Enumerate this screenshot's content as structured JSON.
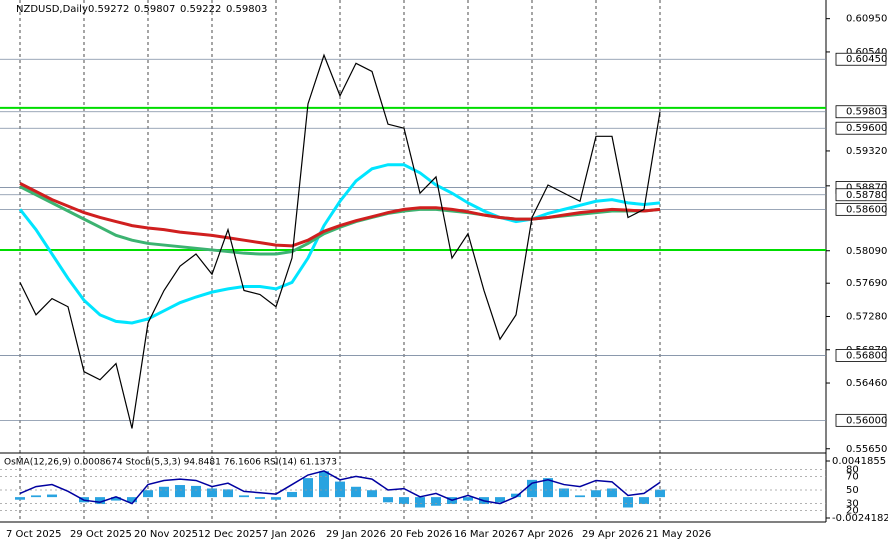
{
  "chart_data": [
    {
      "type": "line",
      "title": "NZDUSD,Daily",
      "ohlc": [
        0.59272,
        0.59807,
        0.59222,
        0.59803
      ],
      "categories": [
        "7 Oct 2025",
        null,
        null,
        null,
        "29 Oct 2025",
        null,
        null,
        null,
        "20 Nov 2025",
        null,
        null,
        null,
        "12 Dec 2025",
        null,
        null,
        null,
        "7 Jan 2026",
        null,
        null,
        null,
        "29 Jan 2026",
        null,
        null,
        null,
        "20 Feb 2026",
        null,
        null,
        null,
        "16 Mar 2026",
        null,
        null,
        null,
        "7 Apr 2026",
        null,
        null,
        null,
        "29 Apr 2026",
        null,
        null,
        null,
        "21 May 2026"
      ],
      "series": [
        {
          "color": "#000000",
          "values": [
            0.577,
            0.573,
            0.575,
            0.574,
            0.566,
            0.565,
            0.567,
            0.559,
            0.572,
            0.576,
            0.579,
            0.5805,
            0.578,
            0.5835,
            0.576,
            0.5755,
            0.574,
            0.58,
            0.599,
            0.605,
            0.6,
            0.604,
            0.603,
            0.5965,
            0.596,
            0.588,
            0.59,
            0.58,
            0.583,
            0.576,
            0.57,
            0.573,
            0.585,
            0.589,
            0.588,
            0.587,
            0.595,
            0.595,
            0.585,
            0.586,
            0.59803
          ]
        },
        {
          "color": "#00e5ff",
          "values": [
            0.586,
            0.5835,
            0.5805,
            0.5775,
            0.5748,
            0.573,
            0.5722,
            0.572,
            0.5725,
            0.5735,
            0.5745,
            0.5752,
            0.5758,
            0.5762,
            0.5765,
            0.5765,
            0.5762,
            0.577,
            0.58,
            0.584,
            0.587,
            0.5895,
            0.591,
            0.5915,
            0.5915,
            0.5905,
            0.589,
            0.588,
            0.5868,
            0.5858,
            0.585,
            0.5845,
            0.5848,
            0.5855,
            0.586,
            0.5865,
            0.587,
            0.5872,
            0.5868,
            0.5866,
            0.5868
          ]
        },
        {
          "color": "#3cb371",
          "values": [
            0.5888,
            0.5878,
            0.5868,
            0.5858,
            0.5848,
            0.5838,
            0.5828,
            0.5822,
            0.5818,
            0.5816,
            0.5814,
            0.5812,
            0.581,
            0.5808,
            0.5806,
            0.5805,
            0.5805,
            0.5808,
            0.5818,
            0.583,
            0.5838,
            0.5845,
            0.585,
            0.5855,
            0.5858,
            0.586,
            0.586,
            0.5858,
            0.5856,
            0.5853,
            0.585,
            0.5848,
            0.5848,
            0.585,
            0.5852,
            0.5854,
            0.5856,
            0.5858,
            0.5858,
            0.5858,
            0.586
          ]
        },
        {
          "color": "#d01f1f",
          "values": [
            0.5892,
            0.5882,
            0.5872,
            0.5864,
            0.5856,
            0.585,
            0.5845,
            0.584,
            0.5837,
            0.5835,
            0.5832,
            0.583,
            0.5828,
            0.5825,
            0.5822,
            0.5819,
            0.5816,
            0.5815,
            0.5822,
            0.5833,
            0.584,
            0.5846,
            0.5851,
            0.5856,
            0.586,
            0.5862,
            0.5862,
            0.586,
            0.5857,
            0.5853,
            0.585,
            0.5848,
            0.5848,
            0.585,
            0.5853,
            0.5856,
            0.5858,
            0.586,
            0.5859,
            0.5858,
            0.586
          ]
        }
      ],
      "ylim": [
        0.5561,
        0.6118
      ],
      "yticks": [
        {
          "value": 0.6095,
          "label": "0.60950"
        },
        {
          "value": 0.6054,
          "label": "0.60540"
        },
        {
          "value": 0.5932,
          "label": "0.59320"
        },
        {
          "value": 0.5889,
          "label": "0.58890"
        },
        {
          "value": 0.5809,
          "label": "0.58090"
        },
        {
          "value": 0.5769,
          "label": "0.57690"
        },
        {
          "value": 0.5728,
          "label": "0.57280"
        },
        {
          "value": 0.5687,
          "label": "0.56870"
        },
        {
          "value": 0.5646,
          "label": "0.56460"
        },
        {
          "value": 0.5565,
          "label": "0.55650"
        }
      ],
      "levels": [
        {
          "value": 0.6045,
          "label": "0.60450"
        },
        {
          "value": 0.59803,
          "label": "0.59803"
        },
        {
          "value": 0.596,
          "label": "0.59600"
        },
        {
          "value": 0.5887,
          "label": "0.58870"
        },
        {
          "value": 0.5878,
          "label": "0.58780"
        },
        {
          "value": 0.586,
          "label": "0.58600"
        },
        {
          "value": 0.568,
          "label": "0.56800"
        },
        {
          "value": 0.56,
          "label": "0.56000"
        }
      ],
      "trend_lines": [
        0.5985,
        0.581
      ],
      "trend_color": "#00dd00"
    },
    {
      "type": "bar",
      "title": "OsMA(12,26,9) 0.0008674  Stoch(5,3,3) 94.8481 76.1606  RSI(14) 61.1373",
      "color": "#29a3e0",
      "values": [
        -0.0003,
        0.0002,
        0.0003,
        0.0,
        -0.0006,
        -0.0008,
        -0.0004,
        -0.0006,
        0.0008,
        0.0012,
        0.0014,
        0.0013,
        0.001,
        0.0009,
        0.0002,
        -0.0002,
        -0.0003,
        0.0006,
        0.0022,
        0.003,
        0.0018,
        0.0012,
        0.0008,
        -0.0006,
        -0.0008,
        -0.0012,
        -0.001,
        -0.0008,
        -0.0004,
        -0.0008,
        -0.0006,
        0.0004,
        0.002,
        0.0022,
        0.001,
        0.0002,
        0.0008,
        0.001,
        -0.0012,
        -0.0008,
        0.0008674
      ],
      "ylim": [
        -0.0024182,
        0.0041855
      ],
      "yticks": [
        0.0041855,
        -0.0024182
      ]
    },
    {
      "type": "line",
      "color": "#0000a0",
      "values": [
        45,
        55,
        58,
        48,
        35,
        32,
        40,
        30,
        58,
        64,
        66,
        64,
        55,
        60,
        48,
        46,
        44,
        58,
        72,
        78,
        65,
        70,
        66,
        50,
        52,
        40,
        45,
        35,
        42,
        34,
        30,
        40,
        60,
        65,
        58,
        55,
        64,
        62,
        42,
        45,
        61.1373
      ],
      "ylim": [
        0,
        100
      ],
      "yticks": [
        80,
        70,
        50,
        30,
        20
      ]
    }
  ]
}
